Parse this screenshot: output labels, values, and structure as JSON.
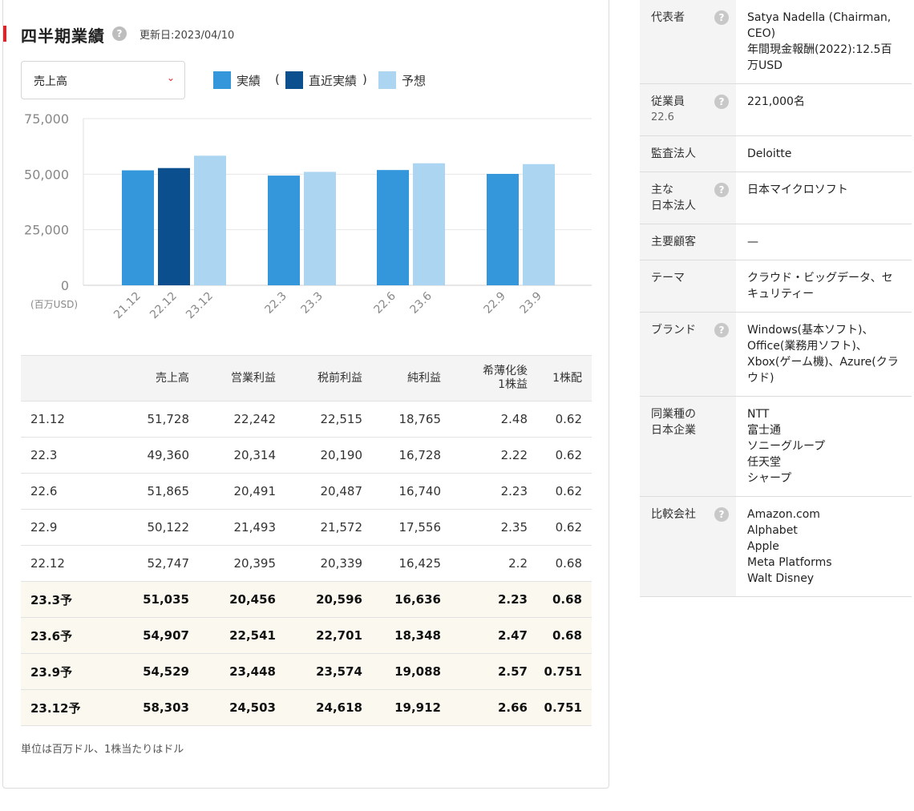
{
  "header": {
    "title": "四半期業績",
    "help": "?",
    "updated": "更新日:2023/04/10"
  },
  "selector": {
    "value": "売上高",
    "chevron": "⌄"
  },
  "legend": {
    "actual": "実績",
    "open_paren": "(",
    "recent": "直近実績",
    "close_paren": ")",
    "forecast": "予想",
    "colors": {
      "actual": "#3497dc",
      "recent": "#0b4f8f",
      "forecast": "#abd5f1"
    }
  },
  "chart_data": {
    "type": "bar",
    "unit_label": "(百万USD)",
    "ylim": [
      0,
      75000
    ],
    "yticks": [
      "0",
      "25,000",
      "50,000",
      "75,000"
    ],
    "ytick_values": [
      0,
      25000,
      50000,
      75000
    ],
    "grid": true,
    "groups": [
      {
        "bars": [
          {
            "label": "21.12",
            "value": 51728,
            "kind": "actual"
          },
          {
            "label": "22.12",
            "value": 52747,
            "kind": "recent"
          },
          {
            "label": "23.12",
            "value": 58303,
            "kind": "forecast"
          }
        ]
      },
      {
        "bars": [
          {
            "label": "22.3",
            "value": 49360,
            "kind": "actual"
          },
          {
            "label": "23.3",
            "value": 51035,
            "kind": "forecast"
          }
        ]
      },
      {
        "bars": [
          {
            "label": "22.6",
            "value": 51865,
            "kind": "actual"
          },
          {
            "label": "23.6",
            "value": 54907,
            "kind": "forecast"
          }
        ]
      },
      {
        "bars": [
          {
            "label": "22.9",
            "value": 50122,
            "kind": "actual"
          },
          {
            "label": "23.9",
            "value": 54529,
            "kind": "forecast"
          }
        ]
      }
    ]
  },
  "table": {
    "headers": [
      "",
      "売上高",
      "営業利益",
      "税前利益",
      "純利益",
      "希薄化後\n1株益",
      "1株配"
    ],
    "rows": [
      {
        "forecast": false,
        "cells": [
          "21.12",
          "51,728",
          "22,242",
          "22,515",
          "18,765",
          "2.48",
          "0.62"
        ]
      },
      {
        "forecast": false,
        "cells": [
          "22.3",
          "49,360",
          "20,314",
          "20,190",
          "16,728",
          "2.22",
          "0.62"
        ]
      },
      {
        "forecast": false,
        "cells": [
          "22.6",
          "51,865",
          "20,491",
          "20,487",
          "16,740",
          "2.23",
          "0.62"
        ]
      },
      {
        "forecast": false,
        "cells": [
          "22.9",
          "50,122",
          "21,493",
          "21,572",
          "17,556",
          "2.35",
          "0.62"
        ]
      },
      {
        "forecast": false,
        "cells": [
          "22.12",
          "52,747",
          "20,395",
          "20,339",
          "16,425",
          "2.2",
          "0.68"
        ]
      },
      {
        "forecast": true,
        "cells": [
          "23.3予",
          "51,035",
          "20,456",
          "20,596",
          "16,636",
          "2.23",
          "0.68"
        ]
      },
      {
        "forecast": true,
        "cells": [
          "23.6予",
          "54,907",
          "22,541",
          "22,701",
          "18,348",
          "2.47",
          "0.68"
        ]
      },
      {
        "forecast": true,
        "cells": [
          "23.9予",
          "54,529",
          "23,448",
          "23,574",
          "19,088",
          "2.57",
          "0.751"
        ]
      },
      {
        "forecast": true,
        "cells": [
          "23.12予",
          "58,303",
          "24,503",
          "24,618",
          "19,912",
          "2.66",
          "0.751"
        ]
      }
    ],
    "footnote": "単位は百万ドル、1株当たりはドル"
  },
  "info": [
    {
      "key": "代表者",
      "help": true,
      "lines": [
        "Satya Nadella (Chairman, CEO)",
        "年間現金報酬(2022):12.5百万USD"
      ]
    },
    {
      "key": "従業員",
      "sub": "22.6",
      "help": true,
      "lines": [
        "221,000名"
      ]
    },
    {
      "key": "監査法人",
      "help": false,
      "lines": [
        "Deloitte"
      ]
    },
    {
      "key": "主な\n日本法人",
      "help": true,
      "lines": [
        "日本マイクロソフト"
      ]
    },
    {
      "key": "主要顧客",
      "help": false,
      "lines": [
        "—"
      ]
    },
    {
      "key": "テーマ",
      "help": false,
      "lines": [
        "クラウド・ビッグデータ、セキュリティー"
      ]
    },
    {
      "key": "ブランド",
      "help": true,
      "lines": [
        "Windows(基本ソフト)、Office(業務用ソフト)、Xbox(ゲーム機)、Azure(クラウド)"
      ]
    },
    {
      "key": "同業種の\n日本企業",
      "help": false,
      "lines": [
        "NTT",
        "富士通",
        "ソニーグループ",
        "任天堂",
        "シャープ"
      ]
    },
    {
      "key": "比較会社",
      "help": true,
      "lines": [
        "Amazon.com",
        "Alphabet",
        "Apple",
        "Meta Platforms",
        "Walt Disney"
      ]
    }
  ]
}
